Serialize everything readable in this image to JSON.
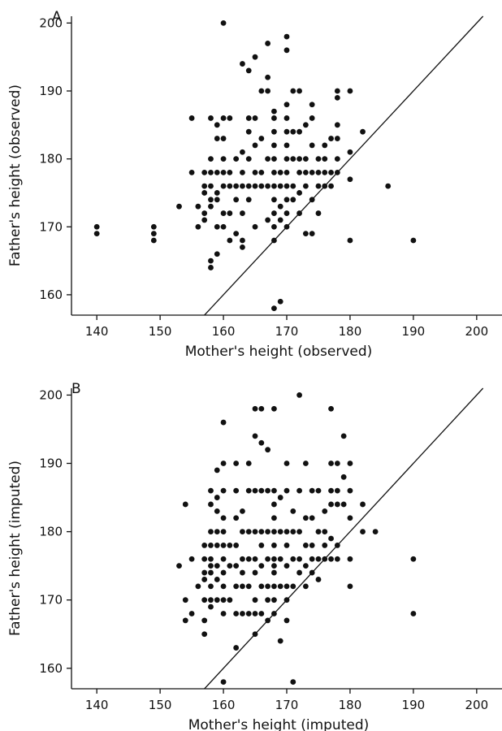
{
  "chart_data": [
    {
      "type": "scatter",
      "panel_label": "A",
      "xlabel": "Mother's height (observed)",
      "ylabel": "Father's height (observed)",
      "xlim": [
        136,
        204
      ],
      "ylim": [
        157,
        201
      ],
      "xticks": [
        140,
        150,
        160,
        170,
        180,
        190,
        200
      ],
      "yticks": [
        160,
        170,
        180,
        190,
        200
      ],
      "reference_line": {
        "from": [
          157,
          157
        ],
        "to": [
          201,
          201
        ]
      },
      "points": [
        [
          140,
          170
        ],
        [
          140,
          169
        ],
        [
          149,
          170
        ],
        [
          149,
          169
        ],
        [
          149,
          168
        ],
        [
          153,
          173
        ],
        [
          155,
          186
        ],
        [
          155,
          178
        ],
        [
          156,
          173
        ],
        [
          156,
          170
        ],
        [
          157,
          176
        ],
        [
          157,
          175
        ],
        [
          157,
          172
        ],
        [
          157,
          178
        ],
        [
          157,
          171
        ],
        [
          158,
          186
        ],
        [
          158,
          180
        ],
        [
          158,
          178
        ],
        [
          158,
          176
        ],
        [
          158,
          174
        ],
        [
          158,
          173
        ],
        [
          158,
          165
        ],
        [
          158,
          164
        ],
        [
          159,
          185
        ],
        [
          159,
          178
        ],
        [
          159,
          175
        ],
        [
          159,
          170
        ],
        [
          159,
          166
        ],
        [
          159,
          174
        ],
        [
          159,
          183
        ],
        [
          160,
          200
        ],
        [
          160,
          186
        ],
        [
          160,
          178
        ],
        [
          160,
          176
        ],
        [
          160,
          172
        ],
        [
          160,
          170
        ],
        [
          160,
          180
        ],
        [
          160,
          183
        ],
        [
          161,
          186
        ],
        [
          161,
          178
        ],
        [
          161,
          176
        ],
        [
          161,
          172
        ],
        [
          161,
          168
        ],
        [
          162,
          180
        ],
        [
          162,
          176
        ],
        [
          162,
          174
        ],
        [
          162,
          169
        ],
        [
          163,
          194
        ],
        [
          163,
          181
        ],
        [
          163,
          178
        ],
        [
          163,
          176
        ],
        [
          163,
          168
        ],
        [
          163,
          167
        ],
        [
          163,
          172
        ],
        [
          164,
          193
        ],
        [
          164,
          186
        ],
        [
          164,
          184
        ],
        [
          164,
          180
        ],
        [
          164,
          176
        ],
        [
          164,
          174
        ],
        [
          165,
          195
        ],
        [
          165,
          186
        ],
        [
          165,
          182
        ],
        [
          165,
          178
        ],
        [
          165,
          176
        ],
        [
          165,
          170
        ],
        [
          166,
          190
        ],
        [
          166,
          183
        ],
        [
          166,
          178
        ],
        [
          166,
          176
        ],
        [
          167,
          197
        ],
        [
          167,
          192
        ],
        [
          167,
          190
        ],
        [
          167,
          180
        ],
        [
          167,
          176
        ],
        [
          167,
          171
        ],
        [
          168,
          187
        ],
        [
          168,
          186
        ],
        [
          168,
          184
        ],
        [
          168,
          182
        ],
        [
          168,
          180
        ],
        [
          168,
          178
        ],
        [
          168,
          176
        ],
        [
          168,
          174
        ],
        [
          168,
          172
        ],
        [
          168,
          170
        ],
        [
          168,
          168
        ],
        [
          168,
          158
        ],
        [
          169,
          178
        ],
        [
          169,
          176
        ],
        [
          169,
          173
        ],
        [
          169,
          171
        ],
        [
          169,
          159
        ],
        [
          170,
          198
        ],
        [
          170,
          196
        ],
        [
          170,
          188
        ],
        [
          170,
          186
        ],
        [
          170,
          184
        ],
        [
          170,
          182
        ],
        [
          170,
          180
        ],
        [
          170,
          178
        ],
        [
          170,
          176
        ],
        [
          170,
          174
        ],
        [
          170,
          172
        ],
        [
          170,
          170
        ],
        [
          171,
          190
        ],
        [
          171,
          184
        ],
        [
          171,
          180
        ],
        [
          171,
          176
        ],
        [
          171,
          174
        ],
        [
          172,
          190
        ],
        [
          172,
          184
        ],
        [
          172,
          180
        ],
        [
          172,
          178
        ],
        [
          172,
          175
        ],
        [
          172,
          172
        ],
        [
          173,
          185
        ],
        [
          173,
          180
        ],
        [
          173,
          178
        ],
        [
          173,
          176
        ],
        [
          173,
          169
        ],
        [
          174,
          188
        ],
        [
          174,
          186
        ],
        [
          174,
          182
        ],
        [
          174,
          178
        ],
        [
          174,
          174
        ],
        [
          174,
          169
        ],
        [
          175,
          180
        ],
        [
          175,
          178
        ],
        [
          175,
          176
        ],
        [
          175,
          172
        ],
        [
          176,
          182
        ],
        [
          176,
          180
        ],
        [
          176,
          178
        ],
        [
          176,
          176
        ],
        [
          177,
          183
        ],
        [
          177,
          178
        ],
        [
          177,
          176
        ],
        [
          178,
          190
        ],
        [
          178,
          189
        ],
        [
          178,
          185
        ],
        [
          178,
          183
        ],
        [
          178,
          180
        ],
        [
          178,
          178
        ],
        [
          180,
          190
        ],
        [
          180,
          181
        ],
        [
          180,
          177
        ],
        [
          180,
          168
        ],
        [
          182,
          184
        ],
        [
          186,
          176
        ],
        [
          190,
          168
        ]
      ]
    },
    {
      "type": "scatter",
      "panel_label": "B",
      "xlabel": "Mother's height (imputed)",
      "ylabel": "Father's height (imputed)",
      "xlim": [
        136,
        204
      ],
      "ylim": [
        157,
        201
      ],
      "xticks": [
        140,
        150,
        160,
        170,
        180,
        190,
        200
      ],
      "yticks": [
        160,
        170,
        180,
        190,
        200
      ],
      "reference_line": {
        "from": [
          157,
          157
        ],
        "to": [
          201,
          201
        ]
      },
      "points": [
        [
          153,
          175
        ],
        [
          154,
          184
        ],
        [
          154,
          170
        ],
        [
          154,
          167
        ],
        [
          155,
          176
        ],
        [
          155,
          168
        ],
        [
          156,
          172
        ],
        [
          157,
          178
        ],
        [
          157,
          176
        ],
        [
          157,
          174
        ],
        [
          157,
          173
        ],
        [
          157,
          170
        ],
        [
          157,
          167
        ],
        [
          157,
          165
        ],
        [
          158,
          186
        ],
        [
          158,
          184
        ],
        [
          158,
          180
        ],
        [
          158,
          178
        ],
        [
          158,
          176
        ],
        [
          158,
          175
        ],
        [
          158,
          174
        ],
        [
          158,
          172
        ],
        [
          158,
          170
        ],
        [
          158,
          169
        ],
        [
          159,
          189
        ],
        [
          159,
          185
        ],
        [
          159,
          183
        ],
        [
          159,
          180
        ],
        [
          159,
          178
        ],
        [
          159,
          175
        ],
        [
          159,
          173
        ],
        [
          159,
          170
        ],
        [
          160,
          196
        ],
        [
          160,
          190
        ],
        [
          160,
          186
        ],
        [
          160,
          182
        ],
        [
          160,
          180
        ],
        [
          160,
          178
        ],
        [
          160,
          176
        ],
        [
          160,
          174
        ],
        [
          160,
          172
        ],
        [
          160,
          170
        ],
        [
          160,
          168
        ],
        [
          160,
          158
        ],
        [
          161,
          178
        ],
        [
          161,
          175
        ],
        [
          161,
          170
        ],
        [
          162,
          190
        ],
        [
          162,
          186
        ],
        [
          162,
          182
        ],
        [
          162,
          178
        ],
        [
          162,
          175
        ],
        [
          162,
          172
        ],
        [
          162,
          168
        ],
        [
          162,
          163
        ],
        [
          163,
          183
        ],
        [
          163,
          180
        ],
        [
          163,
          176
        ],
        [
          163,
          174
        ],
        [
          163,
          172
        ],
        [
          163,
          168
        ],
        [
          164,
          190
        ],
        [
          164,
          186
        ],
        [
          164,
          180
        ],
        [
          164,
          176
        ],
        [
          164,
          172
        ],
        [
          164,
          168
        ],
        [
          165,
          198
        ],
        [
          165,
          194
        ],
        [
          165,
          186
        ],
        [
          165,
          180
        ],
        [
          165,
          176
        ],
        [
          165,
          174
        ],
        [
          165,
          170
        ],
        [
          165,
          168
        ],
        [
          165,
          165
        ],
        [
          166,
          198
        ],
        [
          166,
          193
        ],
        [
          166,
          186
        ],
        [
          166,
          180
        ],
        [
          166,
          178
        ],
        [
          166,
          175
        ],
        [
          166,
          172
        ],
        [
          166,
          168
        ],
        [
          167,
          192
        ],
        [
          167,
          186
        ],
        [
          167,
          180
        ],
        [
          167,
          176
        ],
        [
          167,
          172
        ],
        [
          167,
          170
        ],
        [
          167,
          167
        ],
        [
          168,
          198
        ],
        [
          168,
          186
        ],
        [
          168,
          184
        ],
        [
          168,
          182
        ],
        [
          168,
          180
        ],
        [
          168,
          178
        ],
        [
          168,
          176
        ],
        [
          168,
          175
        ],
        [
          168,
          174
        ],
        [
          168,
          172
        ],
        [
          168,
          170
        ],
        [
          168,
          168
        ],
        [
          169,
          185
        ],
        [
          169,
          180
        ],
        [
          169,
          176
        ],
        [
          169,
          172
        ],
        [
          169,
          164
        ],
        [
          170,
          190
        ],
        [
          170,
          186
        ],
        [
          170,
          180
        ],
        [
          170,
          178
        ],
        [
          170,
          175
        ],
        [
          170,
          172
        ],
        [
          170,
          170
        ],
        [
          170,
          167
        ],
        [
          171,
          183
        ],
        [
          171,
          180
        ],
        [
          171,
          176
        ],
        [
          171,
          172
        ],
        [
          171,
          158
        ],
        [
          172,
          200
        ],
        [
          172,
          186
        ],
        [
          172,
          180
        ],
        [
          172,
          176
        ],
        [
          172,
          174
        ],
        [
          173,
          190
        ],
        [
          173,
          182
        ],
        [
          173,
          178
        ],
        [
          173,
          175
        ],
        [
          173,
          172
        ],
        [
          174,
          186
        ],
        [
          174,
          182
        ],
        [
          174,
          178
        ],
        [
          174,
          176
        ],
        [
          174,
          174
        ],
        [
          175,
          186
        ],
        [
          175,
          180
        ],
        [
          175,
          176
        ],
        [
          175,
          173
        ],
        [
          176,
          183
        ],
        [
          176,
          180
        ],
        [
          176,
          178
        ],
        [
          176,
          176
        ],
        [
          177,
          198
        ],
        [
          177,
          190
        ],
        [
          177,
          186
        ],
        [
          177,
          184
        ],
        [
          177,
          179
        ],
        [
          177,
          176
        ],
        [
          178,
          190
        ],
        [
          178,
          186
        ],
        [
          178,
          184
        ],
        [
          178,
          178
        ],
        [
          178,
          176
        ],
        [
          179,
          194
        ],
        [
          179,
          188
        ],
        [
          179,
          184
        ],
        [
          180,
          190
        ],
        [
          180,
          186
        ],
        [
          180,
          182
        ],
        [
          180,
          176
        ],
        [
          180,
          172
        ],
        [
          182,
          184
        ],
        [
          182,
          180
        ],
        [
          184,
          180
        ],
        [
          190,
          176
        ],
        [
          190,
          168
        ]
      ]
    }
  ]
}
